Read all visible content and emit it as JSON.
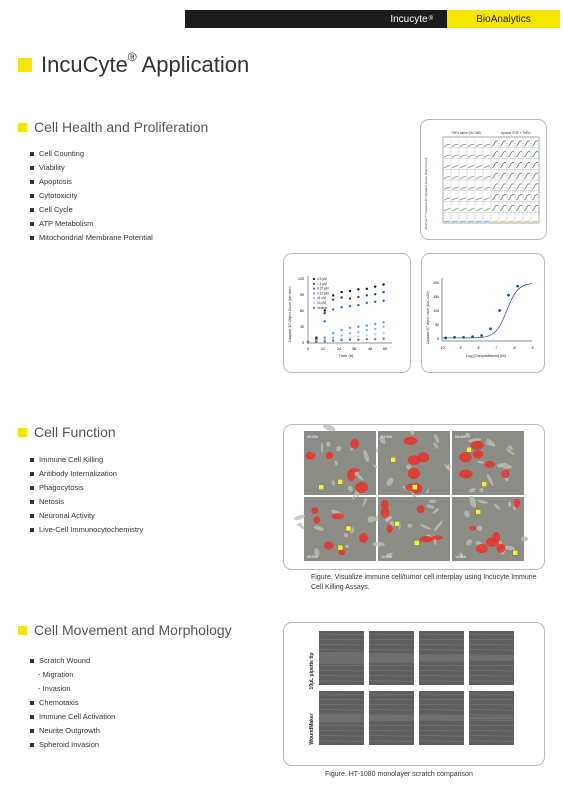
{
  "header": {
    "brand": "Incucyte",
    "brand_mark": "®",
    "bioanalytics": "BioAnalytics"
  },
  "page": {
    "title": "IncuCyte",
    "title_mark": "®",
    "title_rest": " Application"
  },
  "colors": {
    "accent": "#f4e600",
    "topbar": "#1c1c1c"
  },
  "sections": [
    {
      "heading": "Cell Health and Proliferation",
      "items": [
        "Cell Counting",
        "Viability",
        "Apoptosis",
        "Cytotoxicity",
        "Cell Cycle",
        "ATP Metabolism",
        "Mitochondrial Membrane Potential"
      ]
    },
    {
      "heading": "Cell Function",
      "items": [
        "Immune Cell Killing",
        "Antibody Internalization",
        "Phagocytosis",
        "Netosis",
        "Neuronal Activity",
        "Live-Cell Immunocytochemistry"
      ]
    },
    {
      "heading": "Cell Movement and Morphology",
      "items": [
        "Scratch Wound",
        "- Migration",
        "- Invasion",
        "Chemotaxis",
        "Immune Cell Activation",
        "Neurite Outgrowth",
        "Spheroid Invasion"
      ]
    }
  ],
  "figures": {
    "plate": {
      "header_left": "TNFα alone (Hi CHE)",
      "header_right": "Apoptd CHE + TNFα",
      "ylabel": "IncuCyte™ Caspase-3/7 Reagent Green Object Count"
    },
    "timecourse": {
      "ylabel": "Caspase 3/7 Object Count (per mm²)",
      "xlabel": "Time (h)",
      "legend": [
        "3.3 μM",
        "1.1 μM",
        "0.37 μM",
        "0.12 μM",
        "41 nM",
        "14 nM",
        "Vehicle"
      ],
      "yticks": [
        "120",
        "90",
        "60",
        "30",
        "0"
      ],
      "xticks": [
        "0",
        "12",
        "24",
        "36",
        "48",
        "60"
      ]
    },
    "dose": {
      "ylabel": "Caspase 3/7 object count (AUC x10³)",
      "xlabel": "Log [Camptothecin] (M)",
      "xticks": [
        "-10",
        "-9",
        "-8",
        "-7",
        "-6",
        "-5"
      ],
      "yticks": [
        "200",
        "150",
        "100",
        "50",
        "0"
      ]
    },
    "killing": {
      "timestamps": [
        "00:00h",
        "03:00h",
        "06:00h",
        "09:00h",
        "12:00h",
        "15:00h"
      ],
      "caption": "Figure. Visualize immune cell/tumor cell interplay using Incucyte Immune Cell Killing Assays."
    },
    "scratch": {
      "row_labels": [
        "10μL pipette tip",
        "WoundMaker"
      ],
      "caption": "Figure. HT-1080 monolayer scratch comparison"
    }
  },
  "chart_data": [
    {
      "type": "line",
      "title": "",
      "xlabel": "Time (h)",
      "ylabel": "Caspase 3/7 Object Count (per mm²)",
      "xlim": [
        0,
        60
      ],
      "ylim": [
        0,
        120
      ],
      "x": [
        0,
        6,
        12,
        18,
        24,
        30,
        36,
        42,
        48,
        54
      ],
      "series": [
        {
          "name": "3.3 μM",
          "values": [
            2,
            10,
            60,
            88,
            94,
            96,
            99,
            100,
            104,
            108
          ]
        },
        {
          "name": "1.1 μM",
          "values": [
            2,
            8,
            55,
            80,
            84,
            82,
            85,
            88,
            90,
            94
          ]
        },
        {
          "name": "0.37 μM",
          "values": [
            2,
            6,
            40,
            62,
            66,
            68,
            70,
            74,
            76,
            78
          ]
        },
        {
          "name": "0.12 μM",
          "values": [
            1,
            4,
            10,
            18,
            24,
            28,
            30,
            32,
            35,
            38
          ]
        },
        {
          "name": "41 nM",
          "values": [
            1,
            3,
            6,
            10,
            14,
            18,
            20,
            24,
            26,
            30
          ]
        },
        {
          "name": "14 nM",
          "values": [
            1,
            2,
            4,
            6,
            8,
            10,
            12,
            14,
            16,
            18
          ]
        },
        {
          "name": "Vehicle",
          "values": [
            1,
            2,
            3,
            4,
            5,
            6,
            6,
            7,
            7,
            8
          ]
        }
      ]
    },
    {
      "type": "scatter",
      "title": "",
      "xlabel": "Log [Camptothecin] (M)",
      "ylabel": "Caspase 3/7 object count (AUC x10³)",
      "xlim": [
        -10,
        -5
      ],
      "ylim": [
        0,
        200
      ],
      "x": [
        -9.8,
        -9.3,
        -8.8,
        -8.3,
        -7.8,
        -7.3,
        -6.8,
        -6.3,
        -5.8
      ],
      "series": [
        {
          "name": "",
          "values": [
            10,
            12,
            12,
            14,
            18,
            40,
            100,
            150,
            180
          ]
        }
      ]
    }
  ]
}
